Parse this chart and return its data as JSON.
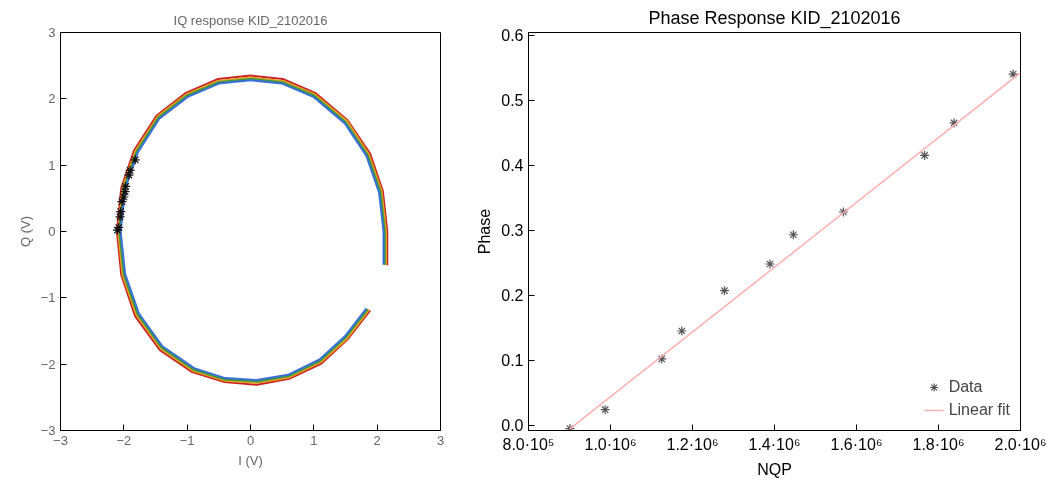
{
  "chart_data": [
    {
      "type": "line",
      "title": "IQ response KID_2102016",
      "xlabel": "I (V)",
      "ylabel": "Q (V)",
      "xlim": [
        -3,
        3
      ],
      "ylim": [
        -3,
        3
      ],
      "xticks": [
        -3,
        -2,
        -1,
        0,
        1,
        2,
        3
      ],
      "yticks": [
        -3,
        -2,
        -1,
        0,
        1,
        2,
        3
      ],
      "grid": false,
      "legend": false,
      "line_style": "solid",
      "series": [
        {
          "color": "#cc2222",
          "x": [
            2.16,
            2.16,
            2.09,
            1.89,
            1.53,
            1.02,
            0.51,
            0,
            -0.51,
            -1.02,
            -1.48,
            -1.84,
            -2.04,
            -2.11,
            -2.04,
            -1.82,
            -1.43,
            -0.92,
            -0.41,
            0.1,
            0.61,
            1.12,
            1.53,
            1.89
          ],
          "values": [
            -0.51,
            0,
            0.61,
            1.17,
            1.68,
            2.09,
            2.3,
            2.35,
            2.3,
            2.09,
            1.75,
            1.22,
            0.66,
            0,
            -0.66,
            -1.28,
            -1.79,
            -2.12,
            -2.27,
            -2.31,
            -2.22,
            -1.99,
            -1.63,
            -1.19
          ]
        },
        {
          "color": "#e0a020",
          "x": [
            2.14,
            2.14,
            2.07,
            1.87,
            1.52,
            1.01,
            0.51,
            0,
            -0.51,
            -1.01,
            -1.46,
            -1.82,
            -2.02,
            -2.09,
            -2.02,
            -1.8,
            -1.41,
            -0.91,
            -0.4,
            0.1,
            0.61,
            1.11,
            1.52,
            1.87
          ],
          "values": [
            -0.51,
            0,
            0.61,
            1.16,
            1.67,
            2.07,
            2.27,
            2.32,
            2.27,
            2.07,
            1.74,
            1.21,
            0.66,
            0,
            -0.66,
            -1.26,
            -1.77,
            -2.1,
            -2.25,
            -2.28,
            -2.2,
            -1.97,
            -1.62,
            -1.18
          ]
        },
        {
          "color": "#3a9a3a",
          "x": [
            2.12,
            2.12,
            2.05,
            1.85,
            1.5,
            1.0,
            0.5,
            0,
            -0.5,
            -1.0,
            -1.45,
            -1.8,
            -2.0,
            -2.07,
            -2.0,
            -1.78,
            -1.4,
            -0.9,
            -0.4,
            0.1,
            0.6,
            1.1,
            1.5,
            1.85
          ],
          "values": [
            -0.5,
            0,
            0.6,
            1.15,
            1.65,
            2.05,
            2.25,
            2.3,
            2.25,
            2.05,
            1.72,
            1.2,
            0.65,
            0,
            -0.65,
            -1.25,
            -1.75,
            -2.08,
            -2.23,
            -2.26,
            -2.18,
            -1.95,
            -1.6,
            -1.17
          ]
        },
        {
          "color": "#3a6fd8",
          "x": [
            2.1,
            2.1,
            2.03,
            1.83,
            1.49,
            0.99,
            0.5,
            0,
            -0.5,
            -0.99,
            -1.44,
            -1.78,
            -1.98,
            -2.05,
            -1.98,
            -1.76,
            -1.39,
            -0.89,
            -0.4,
            0.1,
            0.59,
            1.09,
            1.49,
            1.83
          ],
          "values": [
            -0.5,
            0,
            0.59,
            1.14,
            1.63,
            2.03,
            2.23,
            2.28,
            2.23,
            2.03,
            1.7,
            1.19,
            0.64,
            0,
            -0.64,
            -1.24,
            -1.73,
            -2.06,
            -2.21,
            -2.24,
            -2.16,
            -1.93,
            -1.58,
            -1.16
          ]
        },
        {
          "type": "scatter",
          "marker": "cross",
          "color": "#111111",
          "x": [
            -2.1,
            -2.08,
            -2.06,
            -2.05,
            -2.03,
            -2.0,
            -1.98,
            -1.97,
            -1.92,
            -1.9,
            -1.82
          ],
          "values": [
            0.02,
            0.06,
            0.22,
            0.3,
            0.45,
            0.52,
            0.6,
            0.68,
            0.85,
            0.92,
            1.08
          ]
        }
      ]
    },
    {
      "type": "scatter",
      "title": "Phase Response KID_2102016",
      "xlabel": "NQP",
      "ylabel": "Phase",
      "xlim": [
        800000,
        2000000
      ],
      "ylim": [
        -0.008,
        0.604
      ],
      "xticks": [
        {
          "value": 800000,
          "label": "8.0·10⁵"
        },
        {
          "value": 1000000,
          "label": "1.0·10⁶"
        },
        {
          "value": 1200000,
          "label": "1.2·10⁶"
        },
        {
          "value": 1400000,
          "label": "1.4·10⁶"
        },
        {
          "value": 1600000,
          "label": "1.6·10⁶"
        },
        {
          "value": 1800000,
          "label": "1.8·10⁶"
        },
        {
          "value": 2000000,
          "label": "2.0·10⁶"
        }
      ],
      "yticks": [
        {
          "value": 0,
          "label": "0.0"
        },
        0.1,
        0.2,
        0.3,
        0.4,
        0.5,
        0.6
      ],
      "grid": false,
      "legend": "bottom right",
      "series": [
        {
          "name": "Data",
          "marker": "cross",
          "color": "#555555",
          "x": [
            901000,
            987000,
            1125000,
            1174000,
            1278000,
            1389000,
            1446000,
            1568000,
            1766000,
            1838000,
            1982000
          ],
          "values": [
            -0.005,
            0.024,
            0.102,
            0.145,
            0.207,
            0.248,
            0.293,
            0.328,
            0.415,
            0.465,
            0.54
          ]
        },
        {
          "name": "Linear fit",
          "type": "line",
          "line_style": "solid",
          "color": "#ffb0b0",
          "x": [
            900000,
            2000000
          ],
          "values": [
            -0.006,
            0.542
          ]
        }
      ]
    }
  ]
}
